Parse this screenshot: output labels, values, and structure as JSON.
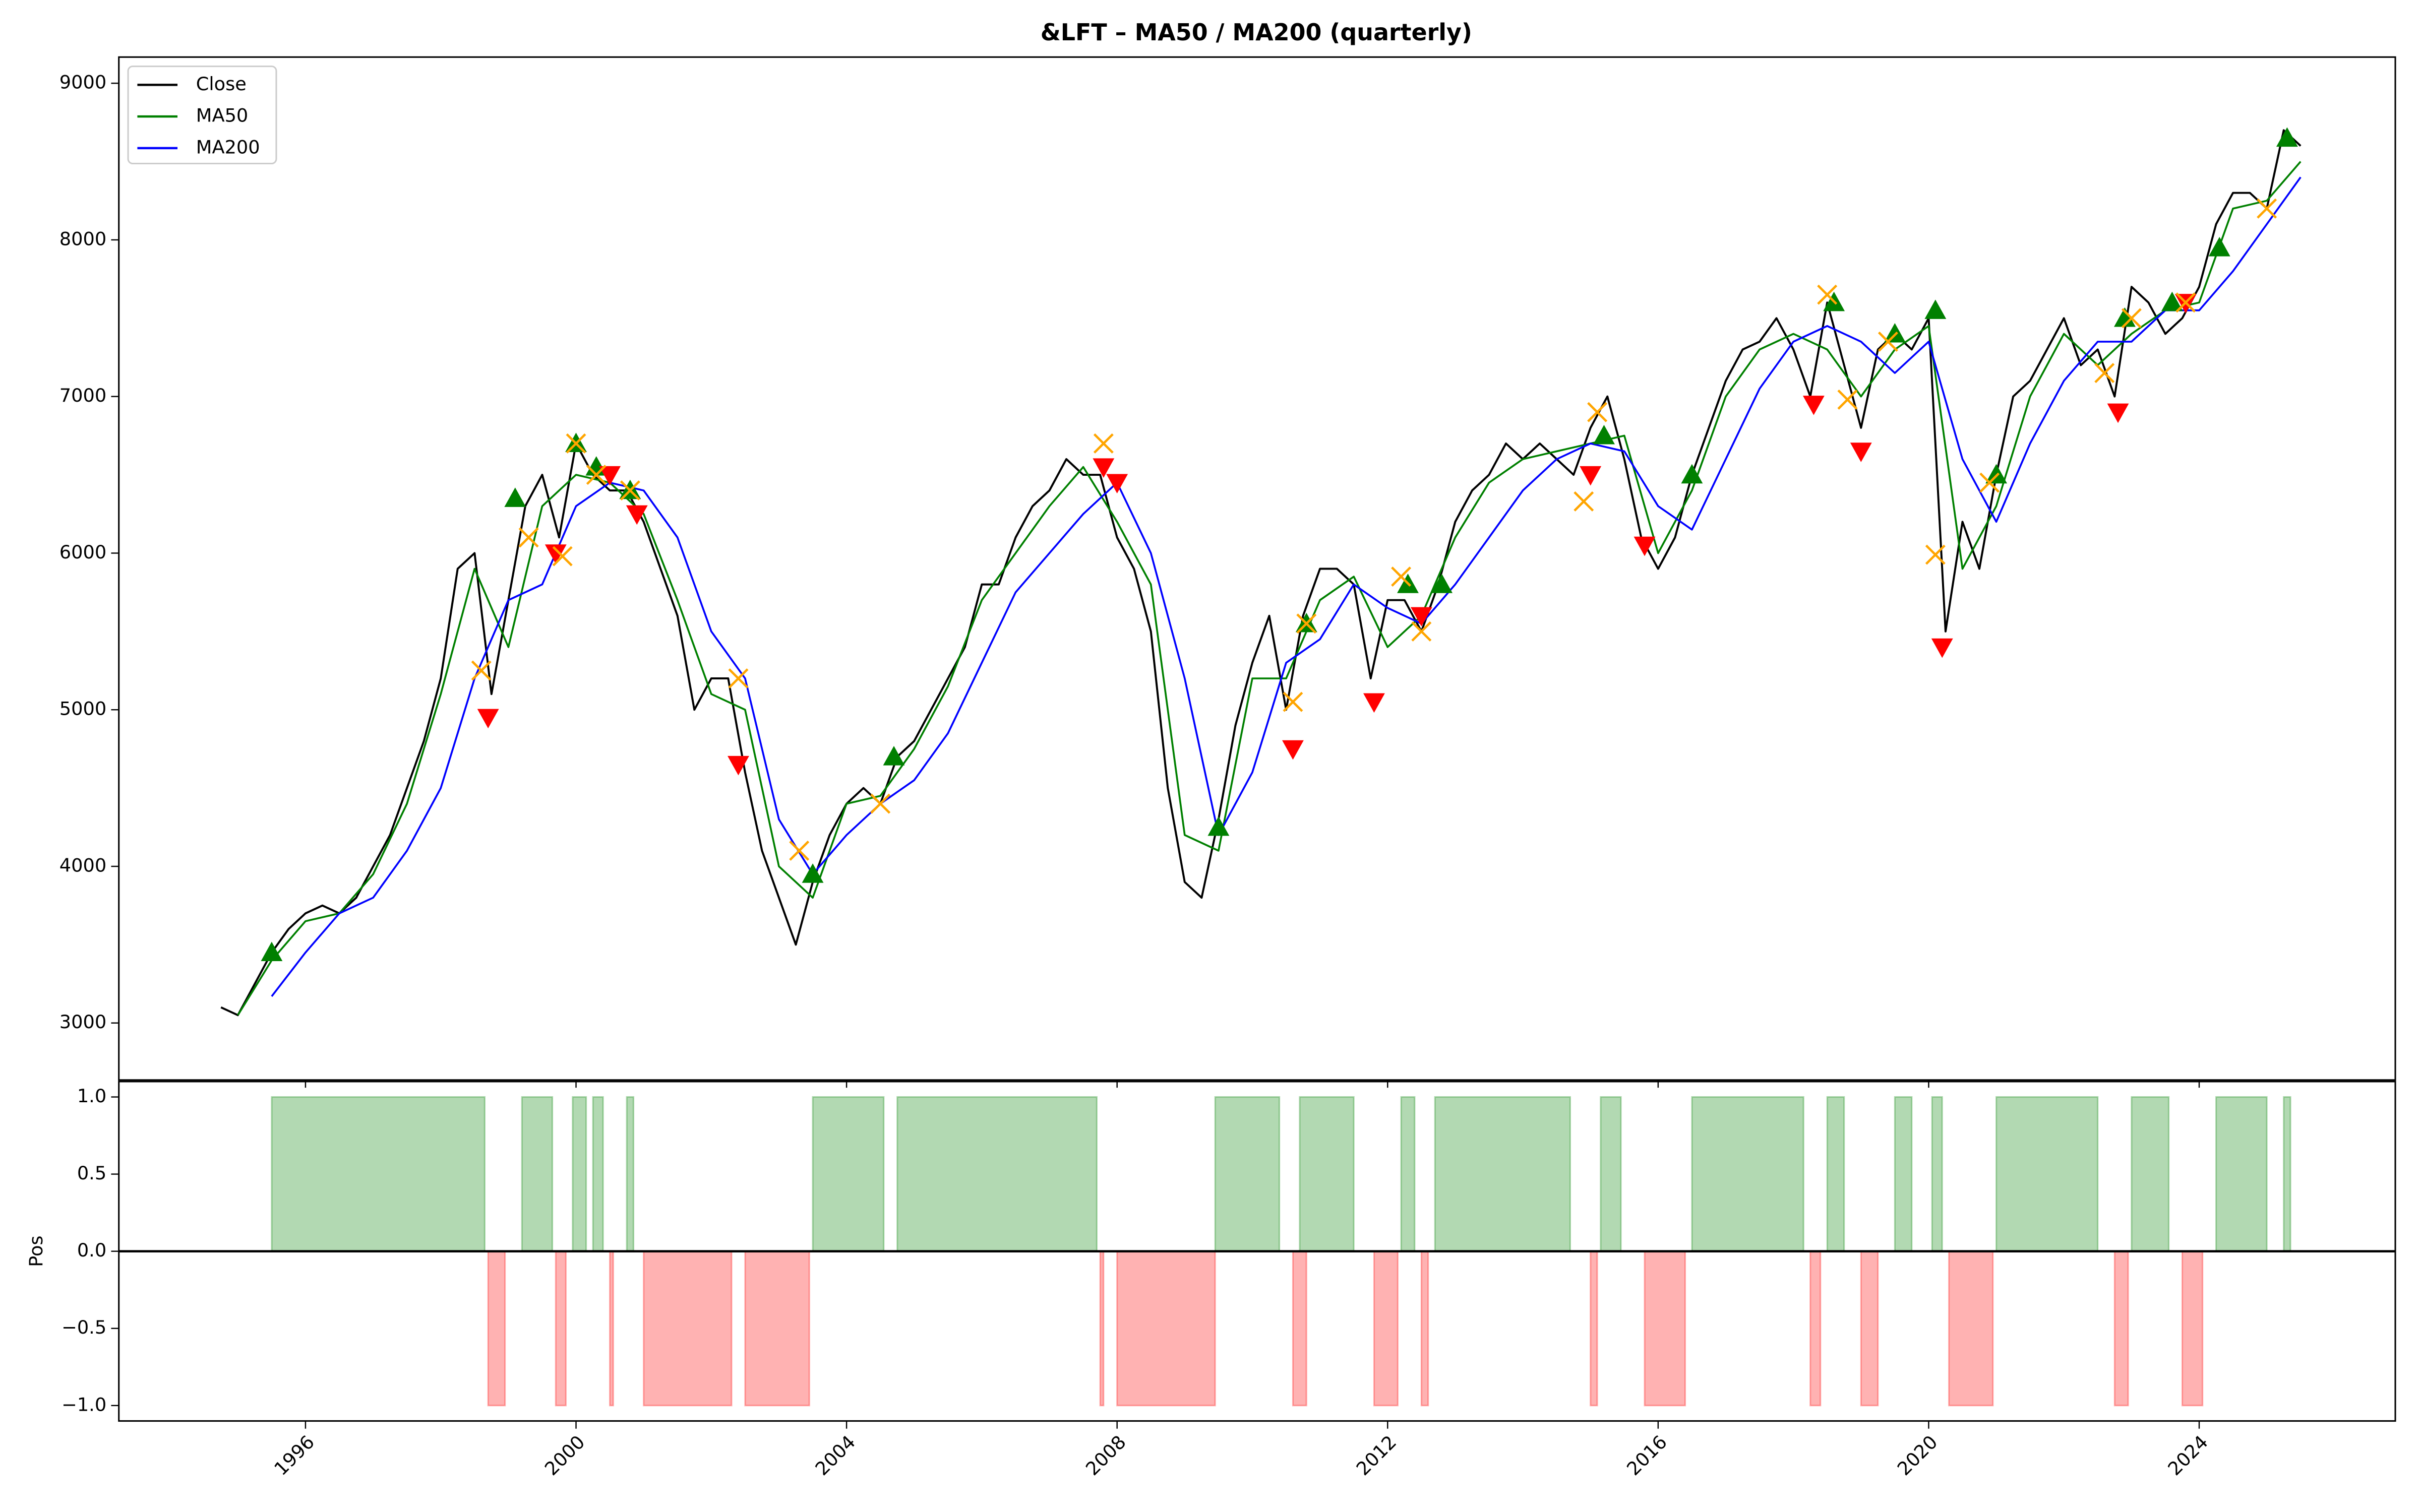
{
  "chart_data": [
    {
      "type": "line",
      "title": "&LFT – MA50 / MA200 (quarterly)",
      "xlim": [
        1993.24,
        2026.9
      ],
      "ylim": [
        2636,
        9167
      ],
      "yticks": [
        3000,
        4000,
        5000,
        6000,
        7000,
        8000,
        9000
      ],
      "legend": "upper left",
      "series": [
        {
          "name": "Close",
          "color": "#000000",
          "x": [
            1994.75,
            1995.0,
            1995.25,
            1995.5,
            1995.75,
            1996.0,
            1996.25,
            1996.5,
            1996.75,
            1997.0,
            1997.25,
            1997.5,
            1997.75,
            1998.0,
            1998.25,
            1998.5,
            1998.75,
            1999.0,
            1999.25,
            1999.5,
            1999.75,
            2000.0,
            2000.25,
            2000.5,
            2000.75,
            2001.0,
            2001.25,
            2001.5,
            2001.75,
            2002.0,
            2002.25,
            2002.5,
            2002.75,
            2003.0,
            2003.25,
            2003.5,
            2003.75,
            2004.0,
            2004.25,
            2004.5,
            2004.75,
            2005.0,
            2005.25,
            2005.5,
            2005.75,
            2006.0,
            2006.25,
            2006.5,
            2006.75,
            2007.0,
            2007.25,
            2007.5,
            2007.75,
            2008.0,
            2008.25,
            2008.5,
            2008.75,
            2009.0,
            2009.25,
            2009.5,
            2009.75,
            2010.0,
            2010.25,
            2010.5,
            2010.75,
            2011.0,
            2011.25,
            2011.5,
            2011.75,
            2012.0,
            2012.25,
            2012.5,
            2012.75,
            2013.0,
            2013.25,
            2013.5,
            2013.75,
            2014.0,
            2014.25,
            2014.5,
            2014.75,
            2015.0,
            2015.25,
            2015.5,
            2015.75,
            2016.0,
            2016.25,
            2016.5,
            2016.75,
            2017.0,
            2017.25,
            2017.5,
            2017.75,
            2018.0,
            2018.25,
            2018.5,
            2018.75,
            2019.0,
            2019.25,
            2019.5,
            2019.75,
            2020.0,
            2020.25,
            2020.5,
            2020.75,
            2021.0,
            2021.25,
            2021.5,
            2021.75,
            2022.0,
            2022.25,
            2022.5,
            2022.75,
            2023.0,
            2023.25,
            2023.5,
            2023.75,
            2024.0,
            2024.25,
            2024.5,
            2024.75,
            2025.0,
            2025.25,
            2025.5
          ],
          "values": [
            3100,
            3050,
            3250,
            3450,
            3600,
            3700,
            3750,
            3700,
            3800,
            4000,
            4200,
            4500,
            4800,
            5200,
            5900,
            6000,
            5100,
            5700,
            6300,
            6500,
            6100,
            6700,
            6500,
            6400,
            6400,
            6200,
            5900,
            5600,
            5000,
            5200,
            5200,
            4600,
            4100,
            3800,
            3500,
            3900,
            4200,
            4400,
            4500,
            4400,
            4700,
            4800,
            5000,
            5200,
            5400,
            5800,
            5800,
            6100,
            6300,
            6400,
            6600,
            6500,
            6500,
            6100,
            5900,
            5500,
            4500,
            3900,
            3800,
            4300,
            4900,
            5300,
            5600,
            5000,
            5600,
            5900,
            5900,
            5800,
            5200,
            5700,
            5700,
            5500,
            5800,
            6200,
            6400,
            6500,
            6700,
            6600,
            6700,
            6600,
            6500,
            6800,
            7000,
            6600,
            6100,
            5900,
            6100,
            6500,
            6800,
            7100,
            7300,
            7350,
            7500,
            7300,
            7000,
            7600,
            7200,
            6800,
            7300,
            7400,
            7300,
            7500,
            5500,
            6200,
            5900,
            6500,
            7000,
            7100,
            7300,
            7500,
            7200,
            7300,
            7000,
            7700,
            7600,
            7400,
            7500,
            7700,
            8100,
            8300,
            8300,
            8200,
            8700,
            8600
          ]
        },
        {
          "name": "MA50",
          "color": "#008000",
          "x": [
            1995.0,
            1995.5,
            1996.0,
            1996.5,
            1997.0,
            1997.5,
            1998.0,
            1998.5,
            1999.0,
            1999.5,
            2000.0,
            2000.5,
            2001.0,
            2001.5,
            2002.0,
            2002.5,
            2003.0,
            2003.5,
            2004.0,
            2004.5,
            2005.0,
            2005.5,
            2006.0,
            2006.5,
            2007.0,
            2007.5,
            2008.0,
            2008.5,
            2009.0,
            2009.5,
            2010.0,
            2010.5,
            2011.0,
            2011.5,
            2012.0,
            2012.5,
            2013.0,
            2013.5,
            2014.0,
            2014.5,
            2015.0,
            2015.5,
            2016.0,
            2016.5,
            2017.0,
            2017.5,
            2018.0,
            2018.5,
            2019.0,
            2019.5,
            2020.0,
            2020.5,
            2021.0,
            2021.5,
            2022.0,
            2022.5,
            2023.0,
            2023.5,
            2024.0,
            2024.5,
            2025.0,
            2025.5
          ],
          "values": [
            3050,
            3400,
            3650,
            3700,
            3950,
            4400,
            5100,
            5900,
            5400,
            6300,
            6500,
            6450,
            6250,
            5700,
            5100,
            5000,
            4000,
            3800,
            4400,
            4450,
            4750,
            5150,
            5700,
            6000,
            6300,
            6550,
            6200,
            5800,
            4200,
            4100,
            5200,
            5200,
            5700,
            5850,
            5400,
            5600,
            6100,
            6450,
            6600,
            6650,
            6700,
            6750,
            6000,
            6400,
            7000,
            7300,
            7400,
            7300,
            7000,
            7300,
            7450,
            5900,
            6300,
            7000,
            7400,
            7200,
            7400,
            7550,
            7600,
            8200,
            8250,
            8500
          ]
        },
        {
          "name": "MA200",
          "color": "#0000ff",
          "x": [
            1995.5,
            1996.0,
            1996.5,
            1997.0,
            1997.5,
            1998.0,
            1998.5,
            1999.0,
            1999.5,
            2000.0,
            2000.5,
            2001.0,
            2001.5,
            2002.0,
            2002.5,
            2003.0,
            2003.5,
            2004.0,
            2004.5,
            2005.0,
            2005.5,
            2006.0,
            2006.5,
            2007.0,
            2007.5,
            2008.0,
            2008.5,
            2009.0,
            2009.5,
            2010.0,
            2010.5,
            2011.0,
            2011.5,
            2012.0,
            2012.5,
            2013.0,
            2013.5,
            2014.0,
            2014.5,
            2015.0,
            2015.5,
            2016.0,
            2016.5,
            2017.0,
            2017.5,
            2018.0,
            2018.5,
            2019.0,
            2019.5,
            2020.0,
            2020.5,
            2021.0,
            2021.5,
            2022.0,
            2022.5,
            2023.0,
            2023.5,
            2024.0,
            2024.5,
            2025.0,
            2025.5
          ],
          "values": [
            3170,
            3450,
            3700,
            3800,
            4100,
            4500,
            5200,
            5700,
            5800,
            6300,
            6450,
            6400,
            6100,
            5500,
            5200,
            4300,
            3950,
            4200,
            4400,
            4550,
            4850,
            5300,
            5750,
            6000,
            6250,
            6450,
            6000,
            5200,
            4200,
            4600,
            5300,
            5450,
            5800,
            5650,
            5550,
            5800,
            6100,
            6400,
            6600,
            6700,
            6650,
            6300,
            6150,
            6600,
            7050,
            7350,
            7450,
            7350,
            7150,
            7350,
            6600,
            6200,
            6700,
            7100,
            7350,
            7350,
            7550,
            7550,
            7800,
            8100,
            8400
          ]
        }
      ],
      "markers": [
        {
          "symbol": "triangle-up",
          "color": "#008000",
          "x": [
            1995.5,
            1999.1,
            2000.0,
            2000.3,
            2000.8,
            2003.5,
            2004.7,
            2009.5,
            2010.8,
            2012.3,
            2012.8,
            2015.2,
            2016.5,
            2018.6,
            2019.5,
            2020.1,
            2021.0,
            2022.9,
            2023.6,
            2024.3,
            2025.3
          ],
          "y": [
            3450,
            6350,
            6700,
            6550,
            6400,
            3950,
            4700,
            4250,
            5550,
            5800,
            5800,
            6750,
            6500,
            7600,
            7400,
            7550,
            6500,
            7500,
            7600,
            7950,
            8650
          ]
        },
        {
          "symbol": "triangle-down",
          "color": "#ff0000",
          "x": [
            1998.7,
            1999.7,
            2000.5,
            2000.9,
            2002.4,
            2007.8,
            2008.0,
            2010.6,
            2011.8,
            2012.5,
            2015.0,
            2015.8,
            2018.3,
            2019.0,
            2020.2,
            2022.8,
            2023.8
          ],
          "y": [
            4950,
            6000,
            6500,
            6250,
            4650,
            6550,
            6450,
            4750,
            5050,
            5600,
            6500,
            6050,
            6950,
            6650,
            5400,
            6900,
            7600
          ]
        },
        {
          "symbol": "x",
          "color": "#ffa500",
          "x": [
            1998.6,
            1999.3,
            1999.8,
            2000.0,
            2000.3,
            2000.8,
            2002.4,
            2003.3,
            2004.5,
            2007.8,
            2010.6,
            2010.8,
            2012.2,
            2012.5,
            2014.9,
            2015.1,
            2018.5,
            2018.8,
            2019.4,
            2020.1,
            2020.9,
            2022.6,
            2023.0,
            2023.8,
            2025.0
          ],
          "y": [
            5250,
            6100,
            5980,
            6700,
            6500,
            6400,
            5200,
            4100,
            4400,
            6700,
            5050,
            5550,
            5850,
            5500,
            6330,
            6900,
            7650,
            6980,
            7350,
            5990,
            6450,
            7150,
            7500,
            7600,
            8200
          ]
        }
      ]
    },
    {
      "type": "position",
      "ylabel": "Pos",
      "xlim": [
        1993.24,
        2026.9
      ],
      "ylim": [
        -1.1,
        1.1
      ],
      "xticks": [
        1996,
        2000,
        2004,
        2008,
        2012,
        2016,
        2020,
        2024
      ],
      "yticks": [
        {
          "value": 1,
          "label": "1.0"
        },
        {
          "value": 0.5,
          "label": "0.5"
        },
        {
          "value": 0,
          "label": "0.0"
        },
        {
          "value": -0.5,
          "label": "−0.5"
        },
        {
          "value": -1,
          "label": "−1.0"
        }
      ],
      "positive_color": "#008000",
      "negative_color": "#ff0000",
      "spans": [
        [
          1995.5,
          1998.65,
          1
        ],
        [
          1999.2,
          1999.65,
          1
        ],
        [
          1999.95,
          2000.15,
          1
        ],
        [
          2000.25,
          2000.4,
          1
        ],
        [
          2000.75,
          2000.85,
          1
        ],
        [
          2003.5,
          2004.55,
          1
        ],
        [
          2004.75,
          2007.7,
          1
        ],
        [
          2009.45,
          2010.4,
          1
        ],
        [
          2010.7,
          2011.5,
          1
        ],
        [
          2012.2,
          2012.4,
          1
        ],
        [
          2012.7,
          2014.7,
          1
        ],
        [
          2015.15,
          2015.45,
          1
        ],
        [
          2016.5,
          2018.15,
          1
        ],
        [
          2018.5,
          2018.75,
          1
        ],
        [
          2019.5,
          2019.75,
          1
        ],
        [
          2020.05,
          2020.2,
          1
        ],
        [
          2021.0,
          2022.5,
          1
        ],
        [
          2023.0,
          2023.55,
          1
        ],
        [
          2024.25,
          2025.0,
          1
        ],
        [
          2025.25,
          2025.35,
          1
        ],
        [
          1998.7,
          1998.95,
          -1
        ],
        [
          1999.7,
          1999.85,
          -1
        ],
        [
          2000.5,
          2000.55,
          -1
        ],
        [
          2001.0,
          2002.3,
          -1
        ],
        [
          2002.5,
          2003.45,
          -1
        ],
        [
          2007.75,
          2007.8,
          -1
        ],
        [
          2008.0,
          2009.45,
          -1
        ],
        [
          2010.6,
          2010.8,
          -1
        ],
        [
          2011.8,
          2012.15,
          -1
        ],
        [
          2012.5,
          2012.6,
          -1
        ],
        [
          2015.0,
          2015.1,
          -1
        ],
        [
          2015.8,
          2016.4,
          -1
        ],
        [
          2018.25,
          2018.4,
          -1
        ],
        [
          2019.0,
          2019.25,
          -1
        ],
        [
          2020.3,
          2020.95,
          -1
        ],
        [
          2022.75,
          2022.95,
          -1
        ],
        [
          2023.75,
          2024.05,
          -1
        ]
      ]
    }
  ]
}
